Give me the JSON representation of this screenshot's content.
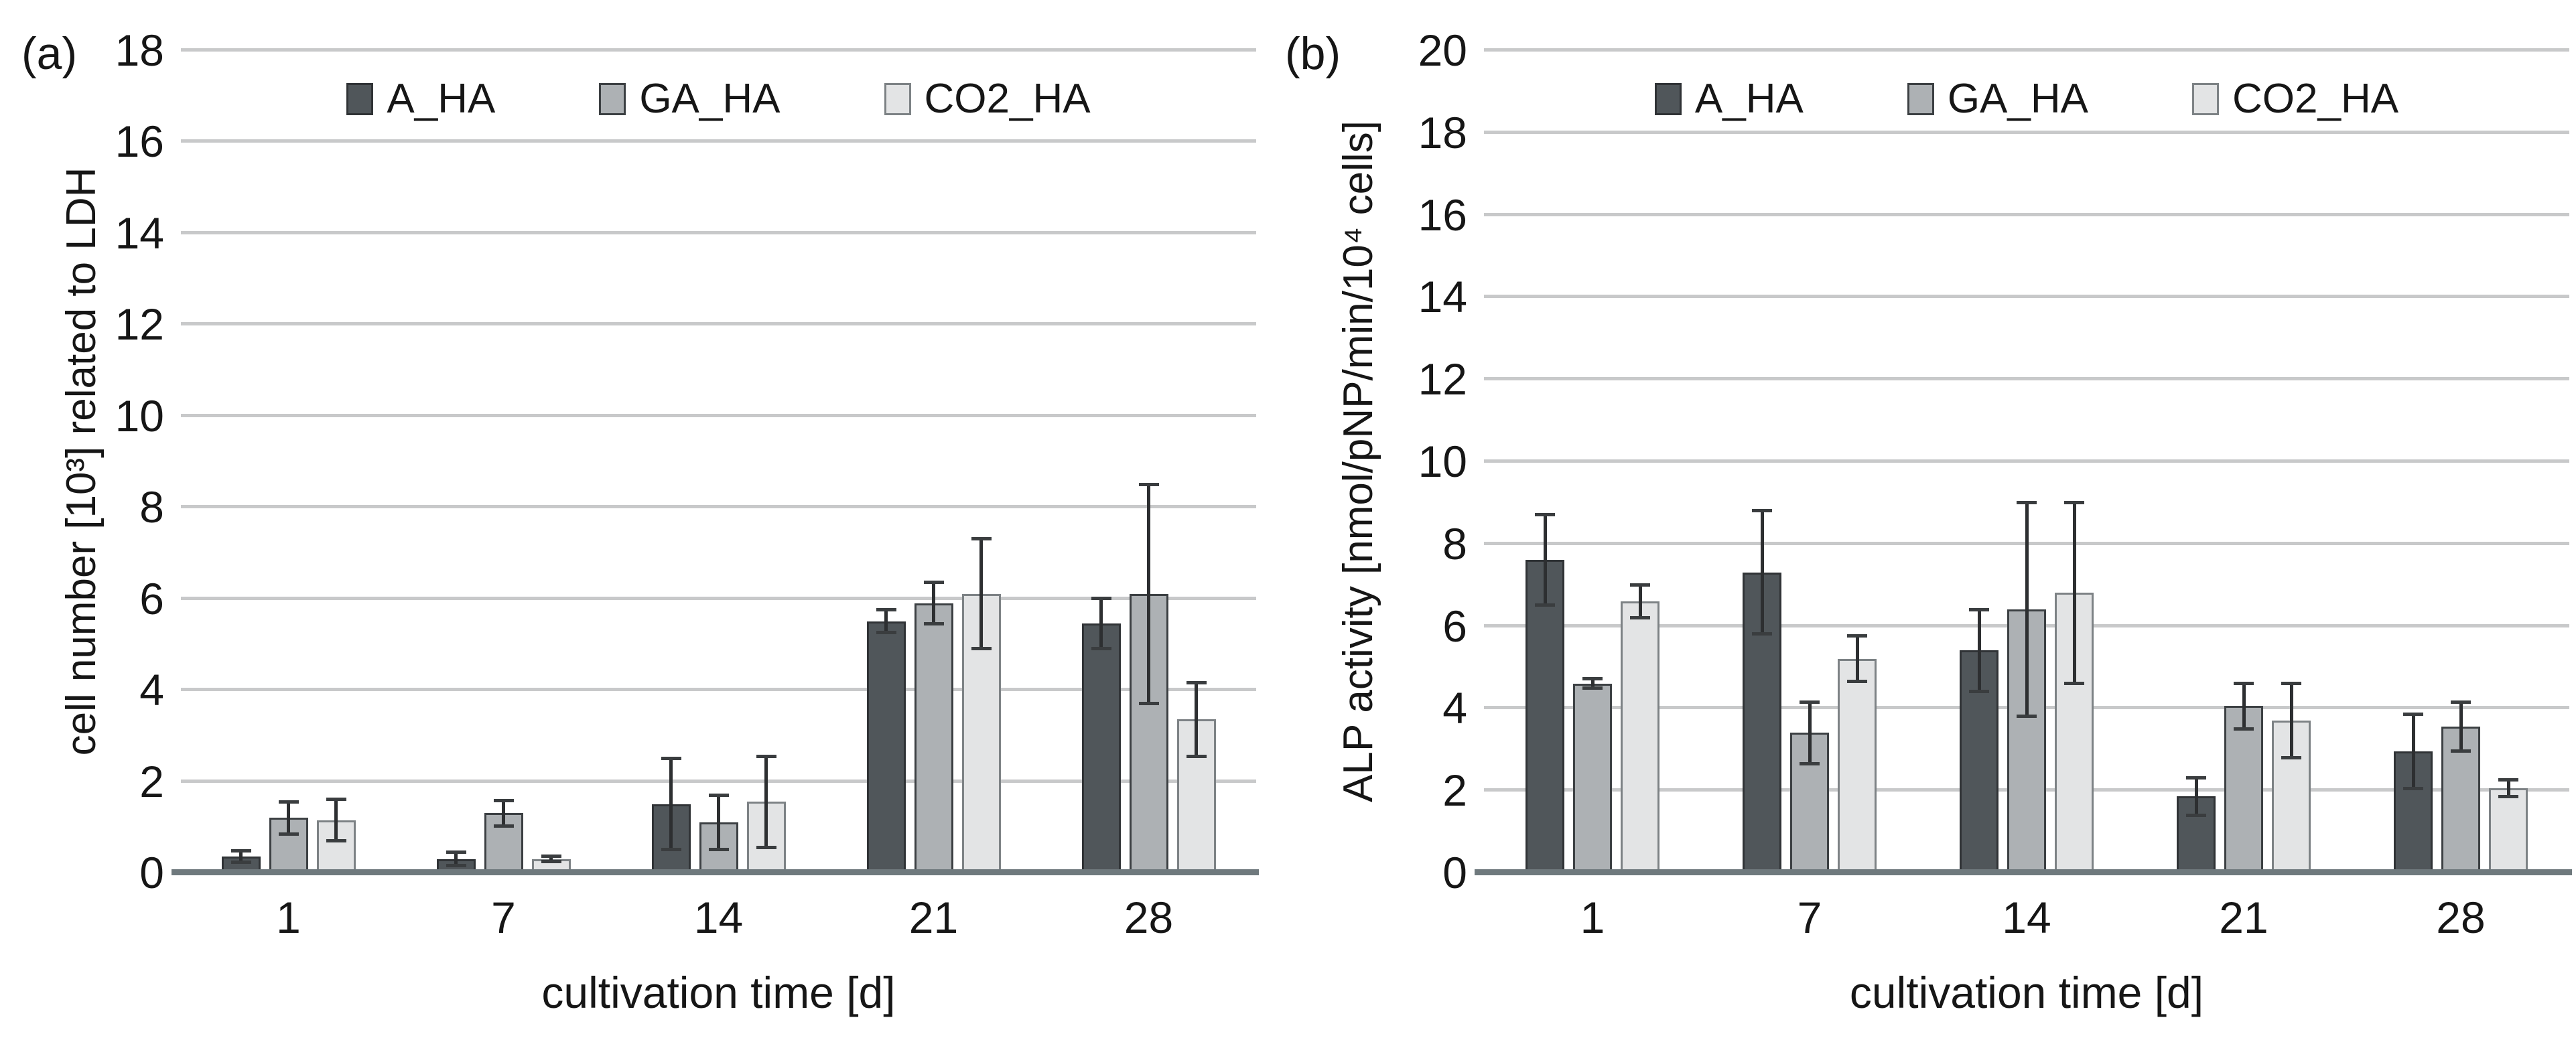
{
  "figure": {
    "background": "#ffffff",
    "panels": [
      {
        "letter": "(a)",
        "ylabel": "cell number [10³] related to LDH",
        "xlabel": "cultivation time [d]"
      },
      {
        "letter": "(b)",
        "ylabel": "ALP activity [nmol/pNP/min/10⁴ cells]",
        "xlabel": "cultivation time [d]"
      }
    ]
  },
  "legend": {
    "items": [
      {
        "label": "A_HA",
        "color": "#50565a",
        "border": "#303336"
      },
      {
        "label": "GA_HA",
        "color": "#adb1b4",
        "border": "#3c4043"
      },
      {
        "label": "CO2_HA",
        "color": "#e3e4e5",
        "border": "#7d8285"
      }
    ]
  },
  "colors": {
    "grid": "#c8c9ca",
    "axis": "#6f797d",
    "error_bar": "#2d2f31",
    "text": "#161616"
  },
  "chart_data": [
    {
      "type": "bar",
      "title": "(a)",
      "categories": [
        "1",
        "7",
        "14",
        "21",
        "28"
      ],
      "xlabel": "cultivation time [d]",
      "ylabel": "cell number [10³] related to LDH",
      "ylim": [
        0,
        18
      ],
      "ytick_step": 2,
      "grid": true,
      "legend_position": "top-center",
      "series": [
        {
          "name": "A_HA",
          "values": [
            0.35,
            0.3,
            1.5,
            5.5,
            5.45
          ],
          "errors": [
            0.12,
            0.15,
            1.0,
            0.25,
            0.55
          ]
        },
        {
          "name": "GA_HA",
          "values": [
            1.2,
            1.3,
            1.1,
            5.9,
            6.1
          ],
          "errors": [
            0.35,
            0.28,
            0.6,
            0.45,
            2.4
          ]
        },
        {
          "name": "CO2_HA",
          "values": [
            1.15,
            0.3,
            1.55,
            6.1,
            3.35
          ],
          "errors": [
            0.45,
            0.06,
            1.0,
            1.2,
            0.8
          ]
        }
      ]
    },
    {
      "type": "bar",
      "title": "(b)",
      "categories": [
        "1",
        "7",
        "14",
        "21",
        "28"
      ],
      "xlabel": "cultivation time [d]",
      "ylabel": "ALP activity [nmol/pNP/min/10⁴ cells]",
      "ylim": [
        0,
        20
      ],
      "ytick_step": 2,
      "grid": true,
      "legend_position": "top-center",
      "series": [
        {
          "name": "A_HA",
          "values": [
            7.6,
            7.3,
            5.4,
            1.85,
            2.95
          ],
          "errors": [
            1.1,
            1.5,
            1.0,
            0.45,
            0.9
          ]
        },
        {
          "name": "GA_HA",
          "values": [
            4.6,
            3.4,
            6.4,
            4.05,
            3.55
          ],
          "errors": [
            0.12,
            0.75,
            2.6,
            0.55,
            0.6
          ]
        },
        {
          "name": "CO2_HA",
          "values": [
            6.6,
            5.2,
            6.8,
            3.7,
            2.05
          ],
          "errors": [
            0.4,
            0.55,
            2.2,
            0.9,
            0.2
          ]
        }
      ]
    }
  ]
}
